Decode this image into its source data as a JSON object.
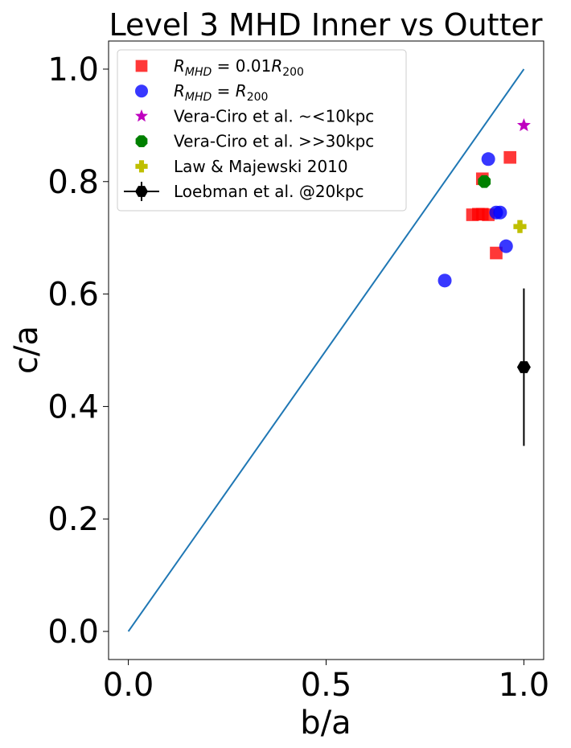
{
  "chart_data": {
    "type": "scatter",
    "title": "Level 3 MHD Inner vs Outter",
    "xlabel": "b/a",
    "ylabel": "c/a",
    "xlim": [
      -0.05,
      1.05
    ],
    "ylim": [
      -0.05,
      1.05
    ],
    "xticks": [
      0.0,
      0.5,
      1.0
    ],
    "xtick_labels": [
      "0.0",
      "0.5",
      "1.0"
    ],
    "yticks": [
      0.0,
      0.2,
      0.4,
      0.6,
      0.8,
      1.0
    ],
    "ytick_labels": [
      "0.0",
      "0.2",
      "0.4",
      "0.6",
      "0.8",
      "1.0"
    ],
    "grid": false,
    "legend_position": "upper-left",
    "reference_line": {
      "x": [
        0.0,
        1.0
      ],
      "y": [
        0.0,
        1.0
      ],
      "color": "#1f77b4"
    },
    "series": [
      {
        "name": "R_MHD = 0.01R_200",
        "legend_parts": {
          "lhs": "R",
          "lhs_sub": "MHD",
          "eq": " = 0.01",
          "rhs": "R",
          "rhs_sub": "200"
        },
        "marker": "square",
        "color": "#ff0000",
        "alpha": 0.78,
        "points": [
          [
            0.895,
            0.805
          ],
          [
            0.965,
            0.843
          ],
          [
            0.87,
            0.741
          ],
          [
            0.885,
            0.742
          ],
          [
            0.895,
            0.742
          ],
          [
            0.91,
            0.741
          ],
          [
            0.93,
            0.673
          ]
        ]
      },
      {
        "name": "R_MHD = R_200",
        "legend_parts": {
          "lhs": "R",
          "lhs_sub": "MHD",
          "eq": " = ",
          "rhs": "R",
          "rhs_sub": "200"
        },
        "marker": "circle",
        "color": "#0000ff",
        "alpha": 0.78,
        "points": [
          [
            0.8,
            0.624
          ],
          [
            0.91,
            0.84
          ],
          [
            0.93,
            0.745
          ],
          [
            0.94,
            0.745
          ],
          [
            0.955,
            0.685
          ]
        ]
      },
      {
        "name": "Vera-Ciro et al. ~<10kpc",
        "marker": "star",
        "color": "#bf00bf",
        "alpha": 1.0,
        "points": [
          [
            1.0,
            0.9
          ]
        ]
      },
      {
        "name": "Vera-Ciro et al. >>30kpc",
        "marker": "octagon",
        "color": "#008000",
        "alpha": 1.0,
        "points": [
          [
            0.9,
            0.8
          ]
        ]
      },
      {
        "name": "Law & Majewski 2010",
        "marker": "plus",
        "color": "#bfbf00",
        "alpha": 1.0,
        "points": [
          [
            0.99,
            0.72
          ]
        ]
      },
      {
        "name": "Loebman et al. @20kpc",
        "marker": "hexagon",
        "color": "#000000",
        "alpha": 1.0,
        "points": [
          [
            1.0,
            0.47
          ]
        ],
        "yerr": [
          0.14
        ]
      }
    ]
  }
}
